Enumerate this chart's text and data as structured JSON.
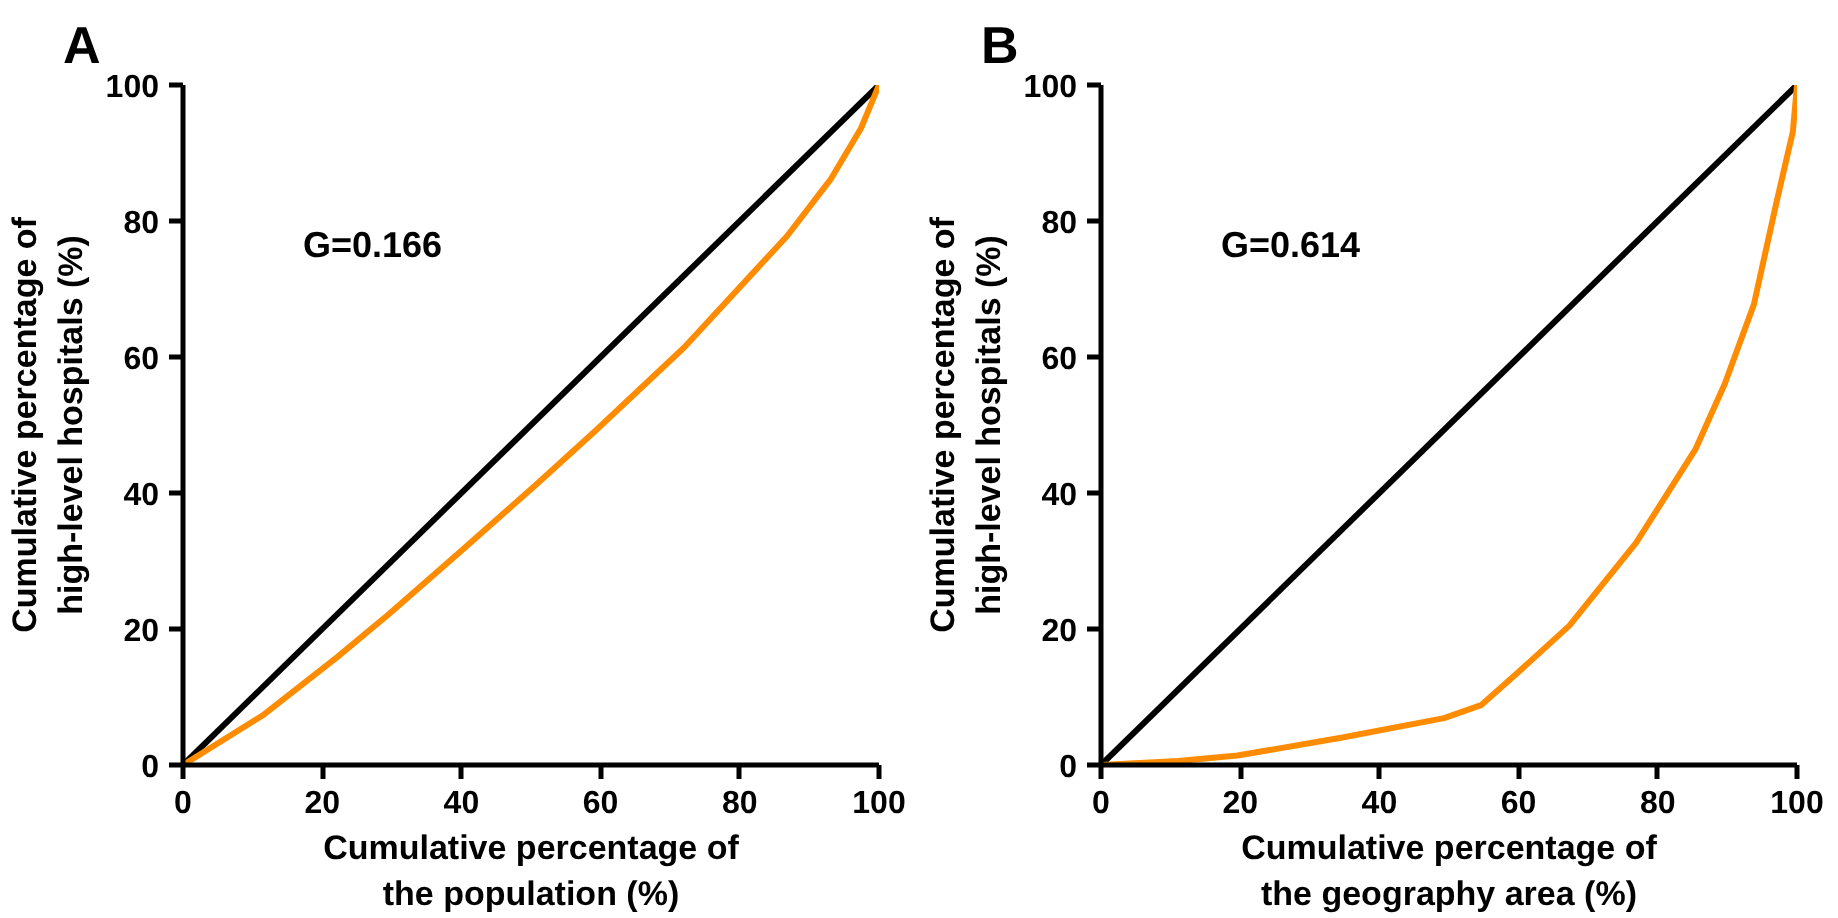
{
  "chart_data": [
    {
      "type": "line",
      "title": "A",
      "xlabel": "Cumulative percentage of\nthe population (%)",
      "ylabel": "Cumulative percentage of\nhigh-level hospitals (%)",
      "xlim": [
        0,
        100
      ],
      "ylim": [
        0,
        100
      ],
      "xticks": [
        0,
        20,
        40,
        60,
        80,
        100
      ],
      "yticks": [
        0,
        20,
        40,
        60,
        80,
        100
      ],
      "grid": false,
      "annotations": [
        "G=0.166"
      ],
      "series": [
        {
          "color": "#000000",
          "x": [
            0,
            100
          ],
          "values": [
            0,
            100
          ]
        },
        {
          "color": "#ff8c00",
          "x": [
            0,
            11.6,
            22.2,
            29.6,
            40.2,
            50.8,
            59.3,
            72,
            86.8,
            93.1,
            97.4,
            100
          ],
          "values": [
            0,
            7.4,
            15.9,
            22.2,
            31.7,
            41.3,
            49.2,
            61.4,
            77.8,
            86.2,
            93.6,
            100
          ]
        }
      ]
    },
    {
      "type": "line",
      "title": "B",
      "xlabel": "Cumulative percentage of\nthe geography area (%)",
      "ylabel": "Cumulative percentage of\nhigh-level hospitals (%)",
      "xlim": [
        0,
        100
      ],
      "ylim": [
        0,
        100
      ],
      "xticks": [
        0,
        20,
        40,
        60,
        80,
        100
      ],
      "yticks": [
        0,
        20,
        40,
        60,
        80,
        100
      ],
      "grid": false,
      "annotations": [
        "G=0.614"
      ],
      "series": [
        {
          "color": "#000000",
          "x": [
            0,
            100
          ],
          "values": [
            0,
            100
          ]
        },
        {
          "color": "#ff8c00",
          "x": [
            0,
            11.1,
            19.6,
            34.5,
            49.3,
            54.6,
            59.9,
            67.3,
            76.9,
            85.4,
            89.6,
            93.8,
            97,
            99.4,
            100
          ],
          "values": [
            0,
            0.6,
            1.4,
            4.0,
            6.9,
            8.8,
            13.6,
            20.5,
            32.7,
            46.4,
            56,
            67.7,
            82.5,
            93.1,
            100
          ]
        }
      ]
    }
  ]
}
